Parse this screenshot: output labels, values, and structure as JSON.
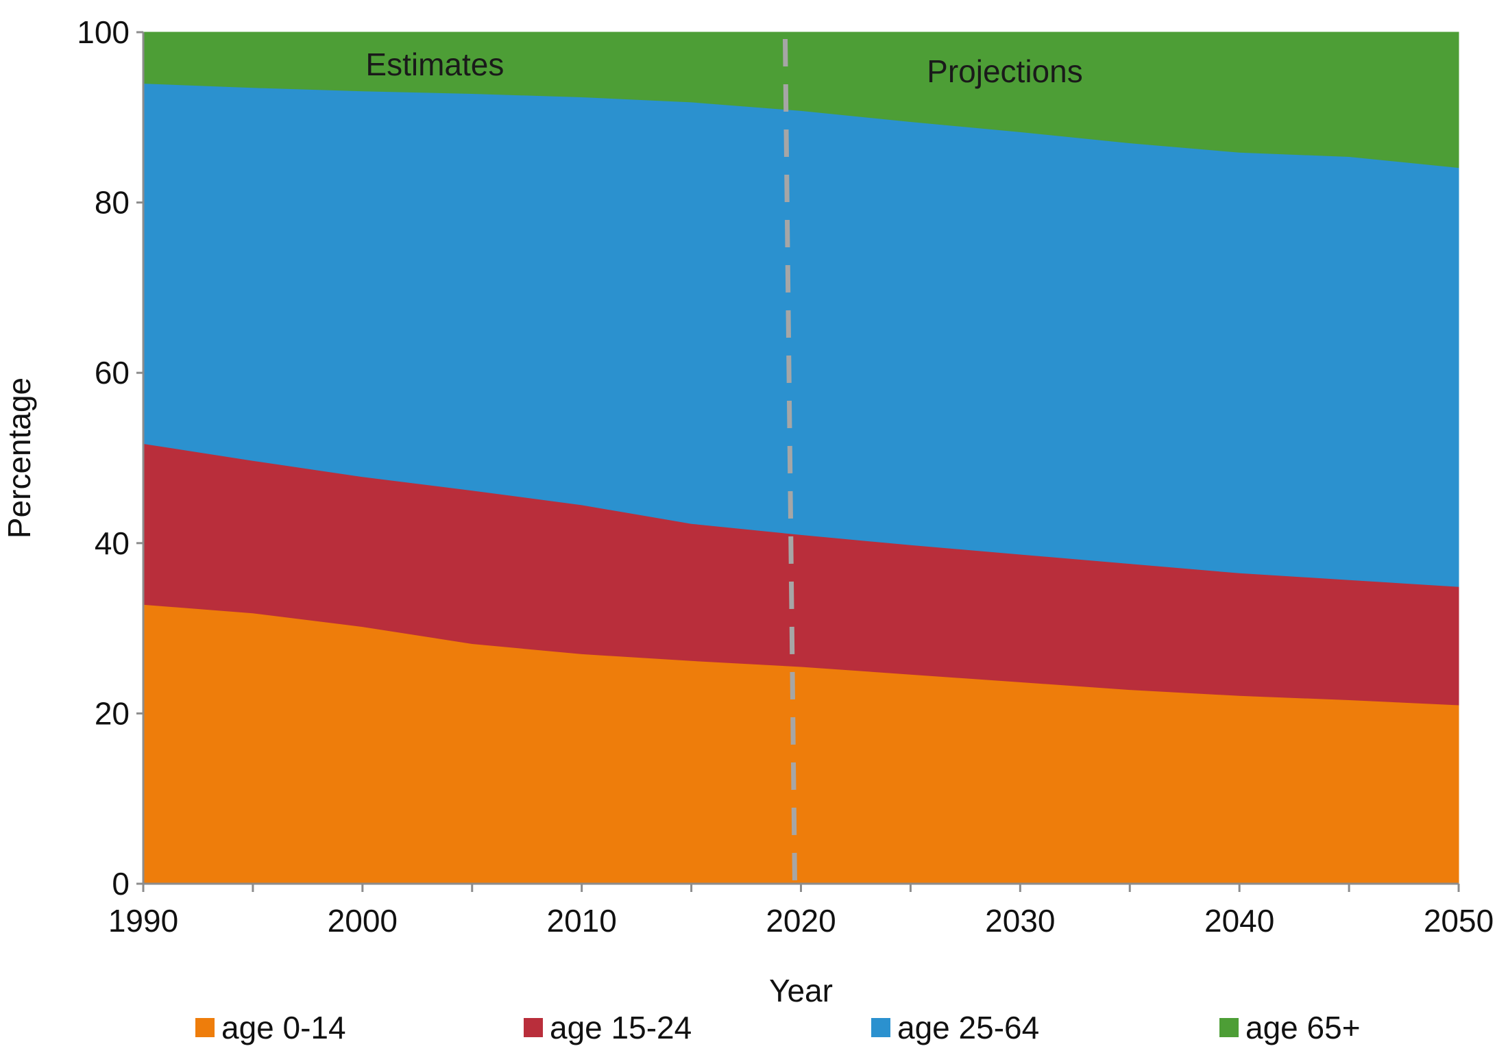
{
  "chart_data": {
    "type": "area",
    "stacked": true,
    "x": [
      1990,
      1995,
      2000,
      2005,
      2010,
      2015,
      2020,
      2025,
      2030,
      2035,
      2040,
      2045,
      2050
    ],
    "series": [
      {
        "name": "age 0-14",
        "color": "#ee7d0b",
        "values": [
          32.8,
          31.8,
          30.2,
          28.2,
          27.0,
          26.2,
          25.5,
          24.6,
          23.7,
          22.8,
          22.1,
          21.6,
          21.0
        ]
      },
      {
        "name": "age 15-24",
        "color": "#b92e3b",
        "values": [
          18.9,
          17.9,
          17.6,
          18.0,
          17.5,
          16.1,
          15.5,
          15.2,
          15.0,
          14.8,
          14.4,
          14.1,
          13.9
        ]
      },
      {
        "name": "age 25-64",
        "color": "#2b91cf",
        "values": [
          42.3,
          43.8,
          45.3,
          46.6,
          47.9,
          49.5,
          49.8,
          49.7,
          49.6,
          49.4,
          49.4,
          49.7,
          49.2
        ]
      },
      {
        "name": "age 65+",
        "color": "#4d9e36",
        "values": [
          6.0,
          6.5,
          6.9,
          7.2,
          7.6,
          8.2,
          9.2,
          10.5,
          11.7,
          13.0,
          14.1,
          14.6,
          15.9
        ]
      }
    ],
    "xlabel": "Year",
    "ylabel": "Percentage",
    "xlim": [
      1990,
      2050
    ],
    "ylim": [
      0,
      100
    ],
    "xticks": [
      "1990",
      "2000",
      "2010",
      "2020",
      "2030",
      "2040",
      "2050"
    ],
    "yticks": [
      "0",
      "20",
      "40",
      "60",
      "80",
      "100"
    ],
    "grid": false,
    "legend_position": "bottom",
    "divider": {
      "x": 2019.5,
      "color": "#a6a6a6",
      "style": "dashed"
    },
    "annotations": {
      "left": "Estimates",
      "right": "Projections"
    }
  }
}
